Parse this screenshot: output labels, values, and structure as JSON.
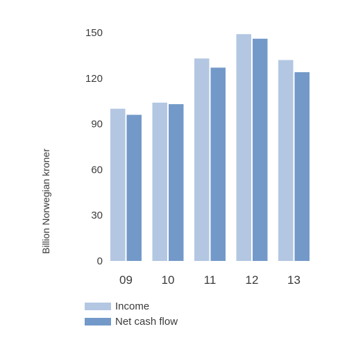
{
  "chart_data": {
    "type": "bar",
    "categories": [
      "09",
      "10",
      "11",
      "12",
      "13"
    ],
    "series": [
      {
        "name": "Income",
        "values": [
          100,
          104,
          133,
          149,
          132
        ],
        "color": "#b3c7e2"
      },
      {
        "name": "Net cash flow",
        "values": [
          96,
          103,
          127,
          146,
          124
        ],
        "color": "#7399c9"
      }
    ],
    "title": "",
    "xlabel": "",
    "ylabel": "Billion Norwegian kroner",
    "ylim": [
      0,
      150
    ],
    "yticks": [
      0,
      30,
      60,
      90,
      120,
      150
    ],
    "grid": false,
    "legend_position": "bottom-left"
  }
}
